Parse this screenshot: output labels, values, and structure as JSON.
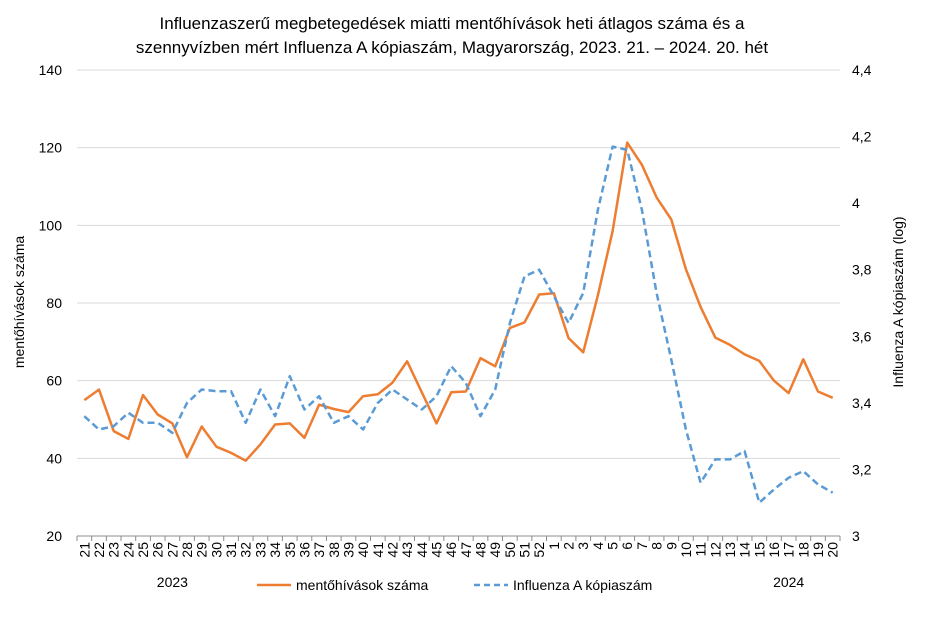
{
  "chart_data": {
    "type": "line",
    "title_lines": [
      "Influenzaszerű megbetegedések miatti mentőhívások heti átlagos száma és a",
      "szennyvízben mért Influenza A kópiaszám, Magyarország, 2023. 21. – 2024. 20. hét"
    ],
    "ylabel": "mentőhívások száma",
    "y2label": "Influenza A kópiaszám (log)",
    "ylim": [
      20,
      140
    ],
    "yticks": [
      20,
      40,
      60,
      80,
      100,
      120,
      140
    ],
    "ytick_labels": [
      "20",
      "40",
      "60",
      "80",
      "100",
      "120",
      "140"
    ],
    "y2lim": [
      3.0,
      4.4
    ],
    "y2ticks": [
      3.0,
      3.2,
      3.4,
      3.6,
      3.8,
      4.0,
      4.2,
      4.4
    ],
    "y2tick_labels": [
      "3",
      "3,2",
      "3,4",
      "3,6",
      "3,8",
      "4",
      "4,2",
      "4,4"
    ],
    "categories": [
      "21",
      "22",
      "23",
      "24",
      "25",
      "26",
      "27",
      "28",
      "29",
      "30",
      "31",
      "32",
      "33",
      "34",
      "35",
      "36",
      "37",
      "38",
      "39",
      "40",
      "41",
      "42",
      "43",
      "44",
      "45",
      "46",
      "47",
      "48",
      "49",
      "50",
      "51",
      "52",
      "1",
      "2",
      "3",
      "4",
      "5",
      "6",
      "7",
      "8",
      "9",
      "10",
      "11",
      "12",
      "13",
      "14",
      "15",
      "16",
      "17",
      "18",
      "19",
      "20"
    ],
    "year_labels": [
      {
        "text": "2023",
        "category_index": 6
      },
      {
        "text": "2024",
        "category_index": 48
      }
    ],
    "grid": "horizontal",
    "legend_position": "bottom",
    "series": [
      {
        "name": "mentőhívások száma",
        "axis": "left",
        "color": "#ED7D31",
        "dash": "solid",
        "values": [
          55,
          57.7,
          47,
          45,
          56.3,
          51.3,
          49,
          40.3,
          48.2,
          43,
          41.4,
          39.4,
          43.6,
          48.7,
          49,
          45.3,
          53.8,
          52.7,
          51.9,
          56,
          56.5,
          59.5,
          65,
          57,
          49,
          57,
          57.2,
          65.8,
          63.7,
          73.6,
          75,
          82.2,
          82.5,
          71,
          67.3,
          82,
          98.5,
          121.3,
          115.6,
          107.2,
          101.5,
          88.7,
          79,
          71.1,
          69.2,
          66.8,
          65.1,
          60,
          56.8,
          65.5,
          57.2,
          55.6
        ]
      },
      {
        "name": "Influenza A kópiaszám",
        "axis": "right",
        "color": "#5B9BD5",
        "dash": "dashed",
        "values": [
          3.36,
          3.32,
          3.33,
          3.37,
          3.34,
          3.34,
          3.31,
          3.4,
          3.44,
          3.435,
          3.435,
          3.34,
          3.44,
          3.36,
          3.48,
          3.38,
          3.42,
          3.34,
          3.36,
          3.32,
          3.4,
          3.44,
          3.41,
          3.38,
          3.42,
          3.51,
          3.46,
          3.36,
          3.44,
          3.64,
          3.78,
          3.8,
          3.72,
          3.64,
          3.73,
          3.98,
          4.17,
          4.16,
          3.98,
          3.73,
          3.53,
          3.32,
          3.16,
          3.23,
          3.23,
          3.255,
          3.1,
          3.14,
          3.175,
          3.195,
          3.155,
          3.13
        ]
      }
    ]
  }
}
